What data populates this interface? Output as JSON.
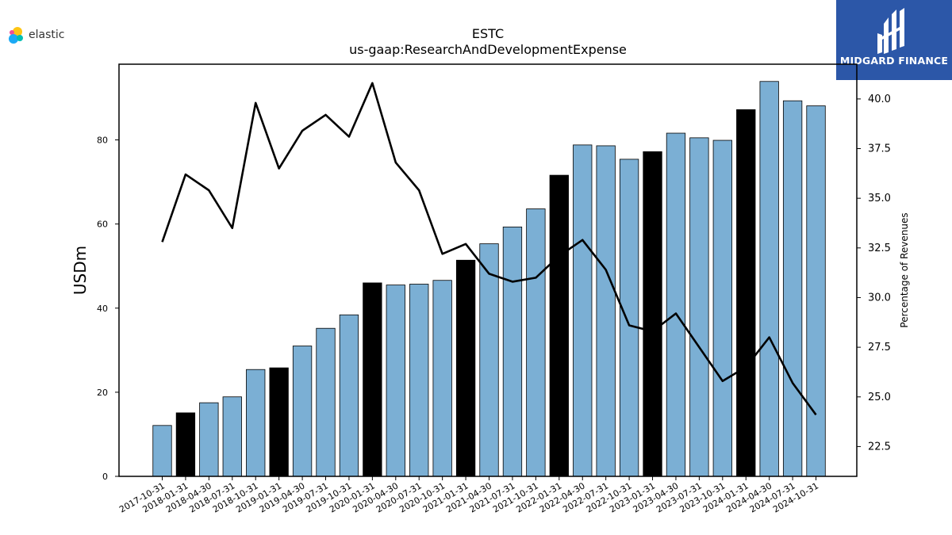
{
  "branding": {
    "left_logo_text": "elastic",
    "right_logo_text": "MIDGARD FINANCE",
    "right_logo_color": "#2c57a8"
  },
  "chart_data": {
    "type": "bar",
    "title": "ESTC",
    "subtitle": "us-gaap:ResearchAndDevelopmentExpense",
    "ylabel": "USDm",
    "y2label": "Percentage of Revenues",
    "ylim": [
      0,
      98
    ],
    "y2lim": [
      21.0,
      41.75
    ],
    "yticks": [
      0,
      20,
      40,
      60,
      80
    ],
    "y2ticks": [
      22.5,
      25.0,
      27.5,
      30.0,
      32.5,
      35.0,
      37.5,
      40.0
    ],
    "grid": false,
    "colors": {
      "bar": "#7bafd4",
      "bar_highlight": "#000000",
      "line": "#000000"
    },
    "categories": [
      "2017-10-31",
      "2018-01-31",
      "2018-04-30",
      "2018-07-31",
      "2018-10-31",
      "2019-01-31",
      "2019-04-30",
      "2019-07-31",
      "2019-10-31",
      "2020-01-31",
      "2020-04-30",
      "2020-07-31",
      "2020-10-31",
      "2021-01-31",
      "2021-04-30",
      "2021-07-31",
      "2021-10-31",
      "2022-01-31",
      "2022-04-30",
      "2022-07-31",
      "2022-10-31",
      "2023-01-31",
      "2023-04-30",
      "2023-07-31",
      "2023-10-31",
      "2024-01-31",
      "2024-04-30",
      "2024-07-31",
      "2024-10-31"
    ],
    "highlight": [
      false,
      true,
      false,
      false,
      false,
      true,
      false,
      false,
      false,
      true,
      false,
      false,
      false,
      true,
      false,
      false,
      false,
      true,
      false,
      false,
      false,
      true,
      false,
      false,
      false,
      true,
      false,
      false,
      false
    ],
    "series": [
      {
        "type": "bar",
        "axis": "left",
        "values": [
          12.1,
          15.1,
          17.5,
          18.9,
          25.4,
          25.8,
          31.0,
          35.2,
          38.4,
          46.0,
          45.5,
          45.7,
          46.6,
          51.4,
          55.3,
          59.3,
          63.6,
          71.6,
          78.8,
          78.6,
          75.4,
          77.2,
          81.6,
          80.5,
          79.9,
          87.2,
          93.9,
          89.3,
          88.1
        ]
      },
      {
        "type": "line",
        "axis": "right",
        "values": [
          32.8,
          36.2,
          35.4,
          33.5,
          39.8,
          36.5,
          38.4,
          39.2,
          38.1,
          40.8,
          36.8,
          35.4,
          32.2,
          32.7,
          31.2,
          30.8,
          31.0,
          32.1,
          32.9,
          31.4,
          28.6,
          28.3,
          29.2,
          27.5,
          25.8,
          26.5,
          28.0,
          25.7,
          24.1
        ]
      }
    ]
  }
}
